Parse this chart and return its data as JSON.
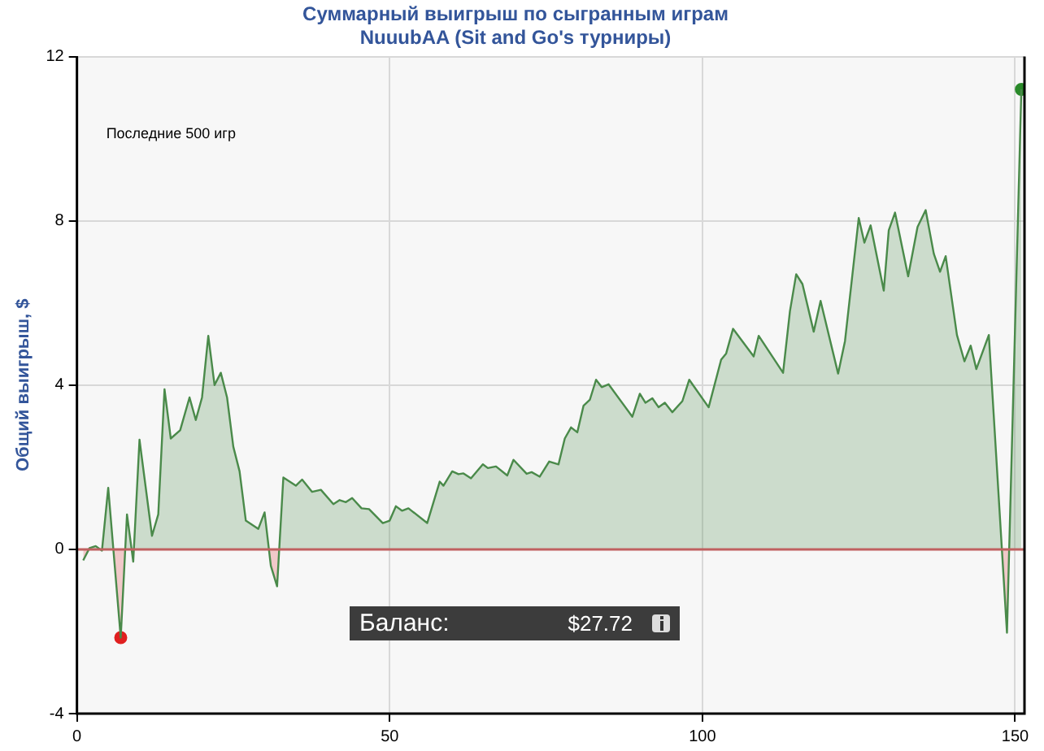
{
  "chart_data": {
    "type": "area",
    "title": "Суммарный выигрыш по сыгранным играм",
    "subtitle": "NuuubAA (Sit and Go's турниры)",
    "ylabel": "Общий выигрыш, $",
    "annotations": [
      "Последние 500 игр",
      "Баланс:",
      "$27.72"
    ],
    "xlim": [
      0,
      151.5
    ],
    "xticks": [
      0,
      50,
      100,
      150
    ],
    "ylim": [
      -4,
      12
    ],
    "yticks": [
      -4,
      0,
      4,
      8,
      12
    ],
    "grid": true,
    "legend": false,
    "marker": "none",
    "line_style": "solid",
    "ref_lines": [
      {
        "axis": "y",
        "value": 0,
        "color": "#c06060"
      }
    ],
    "series": [
      {
        "color": "#4a8a4a",
        "x": [
          1,
          2,
          3,
          4,
          5,
          7,
          8,
          9,
          10,
          12,
          13,
          14,
          15,
          16.5,
          18,
          19,
          20,
          21,
          22,
          23,
          24,
          25,
          26,
          27,
          29,
          30,
          31,
          32,
          33,
          35,
          36,
          37.6,
          39,
          41,
          42,
          43,
          44,
          45.5,
          46.7,
          48.9,
          50,
          51,
          52,
          53,
          56,
          58,
          58.6,
          60,
          61,
          61.8,
          63,
          64.9,
          65.7,
          67,
          68.8,
          69.8,
          71.9,
          72.7,
          74,
          75.5,
          77,
          78,
          79,
          80,
          81,
          82,
          83,
          83.9,
          85,
          88.8,
          90,
          90.9,
          92,
          93,
          94,
          95.2,
          96.8,
          97.9,
          101,
          103,
          103.8,
          104.9,
          108.2,
          109,
          112.9,
          114,
          115,
          116,
          117.8,
          118.9,
          121.7,
          122.8,
          125,
          125.9,
          126.9,
          129,
          129.8,
          130.8,
          132.9,
          134.4,
          135.7,
          137,
          138,
          138.9,
          140.7,
          141.9,
          142.9,
          143.8,
          145.8,
          148.7,
          151
        ],
        "values": [
          -0.27,
          0.03,
          0.08,
          -0.03,
          1.5,
          -2.15,
          0.85,
          -0.3,
          2.67,
          0.33,
          0.85,
          3.9,
          2.7,
          2.9,
          3.7,
          3.15,
          3.7,
          5.2,
          4.0,
          4.3,
          3.7,
          2.5,
          1.9,
          0.7,
          0.5,
          0.9,
          -0.4,
          -0.9,
          1.75,
          1.55,
          1.7,
          1.4,
          1.45,
          1.1,
          1.2,
          1.15,
          1.25,
          1.0,
          0.98,
          0.64,
          0.7,
          1.05,
          0.94,
          1.0,
          0.64,
          1.65,
          1.55,
          1.9,
          1.83,
          1.85,
          1.73,
          2.07,
          1.98,
          2.02,
          1.8,
          2.18,
          1.84,
          1.88,
          1.77,
          2.14,
          2.07,
          2.7,
          2.97,
          2.85,
          3.5,
          3.64,
          4.13,
          3.95,
          4.02,
          3.23,
          3.79,
          3.57,
          3.68,
          3.46,
          3.57,
          3.34,
          3.61,
          4.13,
          3.46,
          4.62,
          4.77,
          5.37,
          4.7,
          5.2,
          4.3,
          5.8,
          6.7,
          6.46,
          5.3,
          6.05,
          4.28,
          5.07,
          8.07,
          7.47,
          7.89,
          6.3,
          7.77,
          8.2,
          6.65,
          7.85,
          8.26,
          7.2,
          6.76,
          7.14,
          5.22,
          4.58,
          4.96,
          4.39,
          5.22,
          -2.03,
          11.2
        ]
      },
      {
        "type": "scatter",
        "marker": "circle",
        "x": [
          7,
          151
        ],
        "values": [
          -2.15,
          11.2
        ],
        "colors": [
          "#e02020",
          "#2a8a2a"
        ]
      }
    ]
  }
}
